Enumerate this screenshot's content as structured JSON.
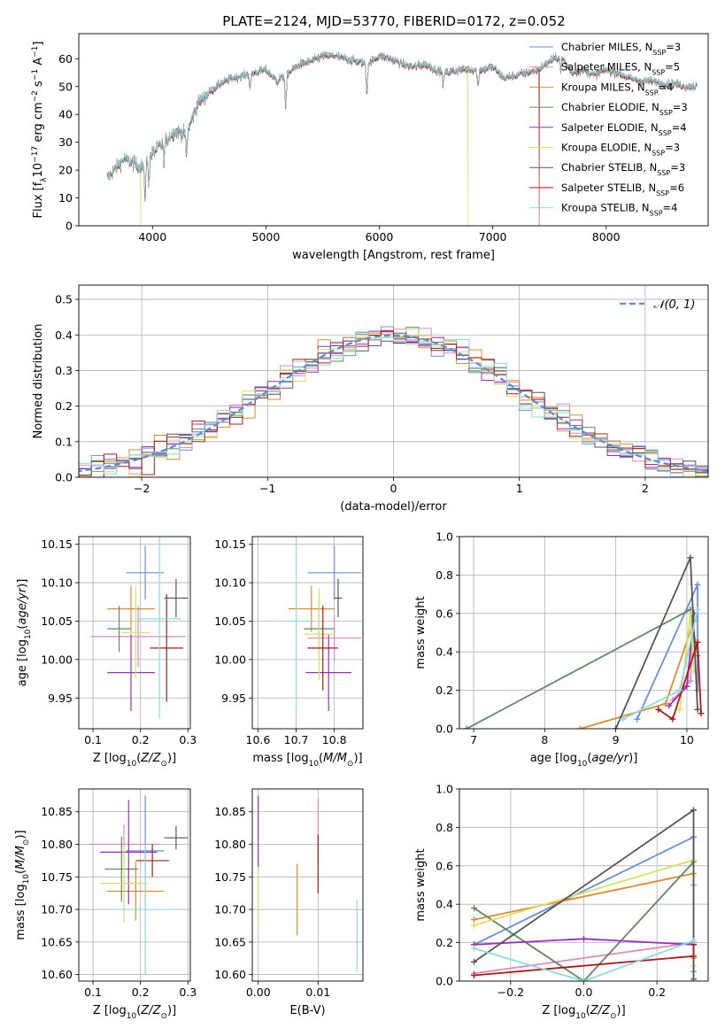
{
  "figure_title": "PLATE=2124, MJD=53770, FIBERID=0172, z=0.052",
  "colors": {
    "Chabrier MILES": "#6a8fe0",
    "Salpeter MILES": "#e08ac0",
    "Kroupa MILES": "#e08a30",
    "Chabrier ELODIE": "#5f8a5f",
    "Salpeter ELODIE": "#9b30c0",
    "Kroupa ELODIE": "#d8e060",
    "Chabrier STELIB": "#555555",
    "Salpeter STELIB": "#b01818",
    "Kroupa STELIB": "#88dde0"
  },
  "chart_data": [
    {
      "id": "spectrum",
      "type": "line",
      "xlabel": "wavelength [Angstrom, rest frame]",
      "ylabel": "Flux [f_λ10^-17 erg cm^-2 s^-1 A^-1]",
      "xlim": [
        3350,
        8900
      ],
      "ylim": [
        0,
        69
      ],
      "xticks": [
        4000,
        5000,
        6000,
        7000,
        8000
      ],
      "yticks": [
        0,
        10,
        20,
        30,
        40,
        50,
        60
      ],
      "grid": false,
      "legend_position": "top-right",
      "legend": [
        {
          "model": "Chabrier MILES",
          "label": "Chabrier MILES, N",
          "sub": "SSP",
          "n": "=3"
        },
        {
          "model": "Salpeter MILES",
          "label": "Salpeter MILES, N",
          "sub": "SSP",
          "n": "=5"
        },
        {
          "model": "Kroupa MILES",
          "label": "Kroupa MILES, N",
          "sub": "SSP",
          "n": "=4"
        },
        {
          "model": "Chabrier ELODIE",
          "label": "Chabrier ELODIE, N",
          "sub": "SSP",
          "n": "=3"
        },
        {
          "model": "Salpeter ELODIE",
          "label": "Salpeter ELODIE, N",
          "sub": "SSP",
          "n": "=4"
        },
        {
          "model": "Kroupa ELODIE",
          "label": "Kroupa ELODIE, N",
          "sub": "SSP",
          "n": "=3"
        },
        {
          "model": "Chabrier STELIB",
          "label": "Chabrier STELIB, N",
          "sub": "SSP",
          "n": "=3"
        },
        {
          "model": "Salpeter STELIB",
          "label": "Salpeter STELIB, N",
          "sub": "SSP",
          "n": "=6"
        },
        {
          "model": "Kroupa STELIB",
          "label": "Kroupa STELIB, N",
          "sub": "SSP",
          "n": "=4"
        }
      ],
      "continuum": [
        [
          3600,
          17
        ],
        [
          3750,
          24
        ],
        [
          3900,
          21
        ],
        [
          4000,
          26
        ],
        [
          4100,
          30
        ],
        [
          4200,
          34
        ],
        [
          4300,
          33
        ],
        [
          4400,
          44
        ],
        [
          4500,
          48
        ],
        [
          4600,
          51
        ],
        [
          4700,
          53
        ],
        [
          4800,
          54
        ],
        [
          4900,
          55
        ],
        [
          5000,
          56
        ],
        [
          5100,
          52
        ],
        [
          5200,
          55
        ],
        [
          5300,
          58
        ],
        [
          5400,
          59
        ],
        [
          5500,
          61
        ],
        [
          5600,
          61
        ],
        [
          5700,
          60
        ],
        [
          5800,
          59
        ],
        [
          5900,
          58
        ],
        [
          6000,
          61
        ],
        [
          6100,
          60
        ],
        [
          6200,
          58
        ],
        [
          6300,
          57
        ],
        [
          6400,
          58
        ],
        [
          6500,
          56
        ],
        [
          6600,
          55
        ],
        [
          6700,
          56
        ],
        [
          6800,
          56
        ],
        [
          6900,
          56
        ],
        [
          7000,
          57
        ],
        [
          7100,
          53
        ],
        [
          7200,
          54
        ],
        [
          7300,
          55
        ],
        [
          7400,
          56
        ],
        [
          7500,
          59
        ],
        [
          7600,
          61
        ],
        [
          7700,
          55
        ],
        [
          7800,
          56
        ],
        [
          7900,
          54
        ],
        [
          8000,
          56
        ],
        [
          8100,
          55
        ],
        [
          8200,
          53
        ],
        [
          8300,
          52
        ],
        [
          8400,
          52
        ],
        [
          8500,
          51
        ],
        [
          8600,
          51
        ],
        [
          8700,
          50
        ],
        [
          8800,
          50
        ]
      ],
      "absorption_features": [
        [
          3934,
          -13
        ],
        [
          3968,
          -8
        ],
        [
          4102,
          -6
        ],
        [
          4300,
          -8
        ],
        [
          4861,
          -6
        ],
        [
          5175,
          -12
        ],
        [
          5890,
          -10
        ],
        [
          6563,
          -5
        ],
        [
          6870,
          -6
        ],
        [
          7600,
          -5
        ]
      ],
      "drops": [
        {
          "model": "Kroupa ELODIE",
          "x": 3895,
          "to": 0
        },
        {
          "model": "Kroupa ELODIE",
          "x": 6780,
          "to": 0
        },
        {
          "model": "Salpeter STELIB",
          "x": 7410,
          "to": 0
        }
      ]
    },
    {
      "id": "residuals",
      "type": "histogram",
      "xlabel": "(data-model)/error",
      "ylabel": "Normed distribution",
      "xlim": [
        -2.5,
        2.5
      ],
      "ylim": [
        0,
        0.54
      ],
      "xticks": [
        -2,
        -1,
        0,
        1,
        2
      ],
      "yticks": [
        0.0,
        0.1,
        0.2,
        0.3,
        0.4,
        0.5
      ],
      "grid": true,
      "bin_width": 0.1,
      "legend_label": "𝒩(0, 1)",
      "legend_position": "top-right",
      "reference_curve": "normal_pdf_mu0_sigma1",
      "reference_color": "#5b8ad8"
    },
    {
      "id": "age_vs_Z",
      "type": "errorbar",
      "xlabel": "Z [log10(Z/Z_sun)]",
      "ylabel": "age [log10(age/yr)]",
      "xlim": [
        0.07,
        0.305
      ],
      "ylim": [
        9.91,
        10.16
      ],
      "xticks": [
        0.1,
        0.2,
        0.3
      ],
      "yticks": [
        9.95,
        10.0,
        10.05,
        10.1,
        10.15
      ],
      "grid": true,
      "points": [
        {
          "model": "Chabrier MILES",
          "x": 0.21,
          "xerr": 0.04,
          "y": 10.113,
          "yerr": 0.035
        },
        {
          "model": "Salpeter MILES",
          "x": 0.195,
          "xerr": 0.1,
          "y": 10.03,
          "yerr": 0.04
        },
        {
          "model": "Kroupa MILES",
          "x": 0.18,
          "xerr": 0.05,
          "y": 10.066,
          "yerr": 0.03
        },
        {
          "model": "Chabrier ELODIE",
          "x": 0.155,
          "xerr": 0.025,
          "y": 10.04,
          "yerr": 0.03
        },
        {
          "model": "Salpeter ELODIE",
          "x": 0.18,
          "xerr": 0.05,
          "y": 9.983,
          "yerr": 0.05
        },
        {
          "model": "Kroupa ELODIE",
          "x": 0.19,
          "xerr": 0.03,
          "y": 10.035,
          "yerr": 0.06
        },
        {
          "model": "Chabrier STELIB",
          "x": 0.275,
          "xerr": 0.025,
          "y": 10.08,
          "yerr": 0.025
        },
        {
          "model": "Salpeter STELIB",
          "x": 0.255,
          "xerr": 0.035,
          "y": 10.015,
          "yerr": 0.07
        },
        {
          "model": "Kroupa STELIB",
          "x": 0.24,
          "xerr": 0.045,
          "y": 10.053,
          "yerr": 0.13
        }
      ]
    },
    {
      "id": "age_vs_mass",
      "type": "errorbar",
      "xlabel": "mass [log10(M/M_sun)]",
      "ylabel": "",
      "xlim": [
        10.585,
        10.875
      ],
      "ylim": [
        9.91,
        10.16
      ],
      "xticks": [
        10.6,
        10.7,
        10.8
      ],
      "yticks": [
        9.95,
        10.0,
        10.05,
        10.1,
        10.15
      ],
      "grid": true,
      "points": [
        {
          "model": "Chabrier MILES",
          "x": 10.8,
          "xerr": 0.07,
          "y": 10.113,
          "yerr": 0.035
        },
        {
          "model": "Salpeter MILES",
          "x": 10.8,
          "xerr": 0.07,
          "y": 10.028,
          "yerr": 0.03
        },
        {
          "model": "Kroupa MILES",
          "x": 10.74,
          "xerr": 0.06,
          "y": 10.066,
          "yerr": 0.03
        },
        {
          "model": "Chabrier ELODIE",
          "x": 10.76,
          "xerr": 0.04,
          "y": 10.04,
          "yerr": 0.035
        },
        {
          "model": "Salpeter ELODIE",
          "x": 10.785,
          "xerr": 0.06,
          "y": 9.983,
          "yerr": 0.05
        },
        {
          "model": "Kroupa ELODIE",
          "x": 10.76,
          "xerr": 0.04,
          "y": 10.033,
          "yerr": 0.06
        },
        {
          "model": "Chabrier STELIB",
          "x": 10.81,
          "xerr": 0.01,
          "y": 10.08,
          "yerr": 0.025
        },
        {
          "model": "Salpeter STELIB",
          "x": 10.77,
          "xerr": 0.04,
          "y": 10.015,
          "yerr": 0.055
        },
        {
          "model": "Kroupa STELIB",
          "x": 10.7,
          "xerr": 0.04,
          "y": 10.05,
          "yerr": 0.12
        }
      ]
    },
    {
      "id": "mass_weight_vs_age",
      "type": "line",
      "xlabel": "age [log10(age/yr)]",
      "ylabel": "mass weight",
      "xlim": [
        6.8,
        10.3
      ],
      "ylim": [
        0,
        1.0
      ],
      "xticks": [
        7,
        8,
        9,
        10
      ],
      "yticks": [
        0.0,
        0.2,
        0.4,
        0.6,
        0.8,
        1.0
      ],
      "grid": true,
      "series": [
        {
          "model": "Chabrier MILES",
          "points": [
            [
              9.3,
              0.05
            ],
            [
              10.15,
              0.75
            ],
            [
              10.15,
              0.2
            ]
          ]
        },
        {
          "model": "Salpeter MILES",
          "points": [
            [
              9.8,
              0.15
            ],
            [
              10.05,
              0.25
            ],
            [
              10.1,
              0.6
            ]
          ]
        },
        {
          "model": "Kroupa MILES",
          "points": [
            [
              8.5,
              0.0
            ],
            [
              9.7,
              0.13
            ],
            [
              10.1,
              0.56
            ]
          ]
        },
        {
          "model": "Chabrier ELODIE",
          "points": [
            [
              6.9,
              0.0
            ],
            [
              10.05,
              0.62
            ],
            [
              10.15,
              0.38
            ]
          ]
        },
        {
          "model": "Salpeter ELODIE",
          "points": [
            [
              9.75,
              0.12
            ],
            [
              10.0,
              0.22
            ],
            [
              10.1,
              0.6
            ]
          ]
        },
        {
          "model": "Kroupa ELODIE",
          "points": [
            [
              9.9,
              0.1
            ],
            [
              10.05,
              0.6
            ],
            [
              10.1,
              0.3
            ]
          ]
        },
        {
          "model": "Chabrier STELIB",
          "points": [
            [
              9.0,
              0.0
            ],
            [
              10.05,
              0.89
            ],
            [
              10.15,
              0.1
            ]
          ]
        },
        {
          "model": "Salpeter STELIB",
          "points": [
            [
              9.6,
              0.1
            ],
            [
              9.8,
              0.05
            ],
            [
              10.15,
              0.45
            ],
            [
              10.2,
              0.08
            ]
          ]
        },
        {
          "model": "Kroupa STELIB",
          "points": [
            [
              9.1,
              0.05
            ],
            [
              9.9,
              0.2
            ],
            [
              10.15,
              0.62
            ]
          ]
        }
      ]
    },
    {
      "id": "mass_vs_Z",
      "type": "errorbar",
      "xlabel": "Z [log10(Z/Z_sun)]",
      "ylabel": "mass [log10(M/M_sun)]",
      "xlim": [
        0.07,
        0.305
      ],
      "ylim": [
        10.59,
        10.885
      ],
      "xticks": [
        0.1,
        0.2,
        0.3
      ],
      "yticks": [
        10.6,
        10.65,
        10.7,
        10.75,
        10.8,
        10.85
      ],
      "grid": true,
      "points": [
        {
          "model": "Chabrier MILES",
          "x": 0.21,
          "xerr": 0.04,
          "y": 10.79,
          "yerr": 0.085
        },
        {
          "model": "Salpeter MILES",
          "x": 0.165,
          "xerr": 0.075,
          "y": 10.8,
          "yerr": 0.03
        },
        {
          "model": "Kroupa MILES",
          "x": 0.19,
          "xerr": 0.06,
          "y": 10.728,
          "yerr": 0.045
        },
        {
          "model": "Chabrier ELODIE",
          "x": 0.16,
          "xerr": 0.035,
          "y": 10.762,
          "yerr": 0.05
        },
        {
          "model": "Salpeter ELODIE",
          "x": 0.175,
          "xerr": 0.06,
          "y": 10.788,
          "yerr": 0.08
        },
        {
          "model": "Kroupa ELODIE",
          "x": 0.165,
          "xerr": 0.05,
          "y": 10.74,
          "yerr": 0.06
        },
        {
          "model": "Chabrier STELIB",
          "x": 0.275,
          "xerr": 0.025,
          "y": 10.81,
          "yerr": 0.018
        },
        {
          "model": "Salpeter STELIB",
          "x": 0.225,
          "xerr": 0.035,
          "y": 10.775,
          "yerr": 0.025
        },
        {
          "model": "Kroupa STELIB",
          "x": 0.21,
          "xerr": 0.065,
          "y": 10.7,
          "yerr": 0.1
        }
      ]
    },
    {
      "id": "mass_vs_EBV",
      "type": "errorbar",
      "xlabel": "E(B-V)",
      "ylabel": "",
      "xlim": [
        -0.001,
        0.0175
      ],
      "ylim": [
        10.59,
        10.885
      ],
      "xticks": [
        0.0,
        0.01
      ],
      "xtick_labels": [
        "0.00",
        "0.01"
      ],
      "yticks": [
        10.6,
        10.65,
        10.7,
        10.75,
        10.8,
        10.85
      ],
      "grid": true,
      "points": [
        {
          "model": "Salpeter ELODIE",
          "x": 0.0,
          "xerr": 0,
          "y": 10.82,
          "yerr": 0.055
        },
        {
          "model": "Kroupa ELODIE",
          "x": 0.0,
          "xerr": 0,
          "y": 10.72,
          "yerr": 0.045
        },
        {
          "model": "Salpeter MILES",
          "x": 0.01,
          "xerr": 0,
          "y": 10.82,
          "yerr": 0.05
        },
        {
          "model": "Salpeter STELIB",
          "x": 0.01,
          "xerr": 0,
          "y": 10.77,
          "yerr": 0.045
        },
        {
          "model": "Kroupa MILES",
          "x": 0.0065,
          "xerr": 0,
          "y": 10.715,
          "yerr": 0.055
        },
        {
          "model": "Kroupa STELIB",
          "x": 0.0165,
          "xerr": 0,
          "y": 10.66,
          "yerr": 0.055
        }
      ]
    },
    {
      "id": "mass_weight_vs_Z",
      "type": "line",
      "xlabel": "Z [log10(Z/Z_sun)]",
      "ylabel": "mass weight",
      "xlim": [
        -0.34,
        0.34
      ],
      "ylim": [
        0,
        1.0
      ],
      "xticks": [
        -0.2,
        0.0,
        0.2
      ],
      "xtick_labels": [
        "−0.2",
        "0.0",
        "0.2"
      ],
      "yticks": [
        0.0,
        0.2,
        0.4,
        0.6,
        0.8,
        1.0
      ],
      "grid": true,
      "series": [
        {
          "model": "Chabrier MILES",
          "points": [
            [
              -0.3,
              0.19
            ],
            [
              0.3,
              0.75
            ],
            [
              0.3,
              0.05
            ]
          ]
        },
        {
          "model": "Salpeter MILES",
          "points": [
            [
              -0.3,
              0.04
            ],
            [
              0.3,
              0.2
            ],
            [
              0.3,
              0.5
            ]
          ]
        },
        {
          "model": "Kroupa MILES",
          "points": [
            [
              -0.3,
              0.32
            ],
            [
              0.3,
              0.56
            ],
            [
              0.3,
              0.12
            ]
          ]
        },
        {
          "model": "Chabrier ELODIE",
          "points": [
            [
              -0.3,
              0.38
            ],
            [
              0.0,
              0.0
            ],
            [
              0.3,
              0.62
            ]
          ]
        },
        {
          "model": "Salpeter ELODIE",
          "points": [
            [
              -0.3,
              0.19
            ],
            [
              0.0,
              0.22
            ],
            [
              0.3,
              0.19
            ]
          ]
        },
        {
          "model": "Kroupa ELODIE",
          "points": [
            [
              -0.3,
              0.29
            ],
            [
              0.3,
              0.63
            ],
            [
              0.3,
              0.08
            ]
          ]
        },
        {
          "model": "Chabrier STELIB",
          "points": [
            [
              -0.3,
              0.1
            ],
            [
              0.3,
              0.89
            ],
            [
              0.3,
              0.01
            ]
          ]
        },
        {
          "model": "Salpeter STELIB",
          "points": [
            [
              -0.3,
              0.03
            ],
            [
              0.3,
              0.13
            ],
            [
              0.3,
              0.19
            ]
          ]
        },
        {
          "model": "Kroupa STELIB",
          "points": [
            [
              -0.3,
              0.17
            ],
            [
              0.0,
              0.0
            ],
            [
              0.3,
              0.21
            ]
          ]
        }
      ]
    }
  ]
}
